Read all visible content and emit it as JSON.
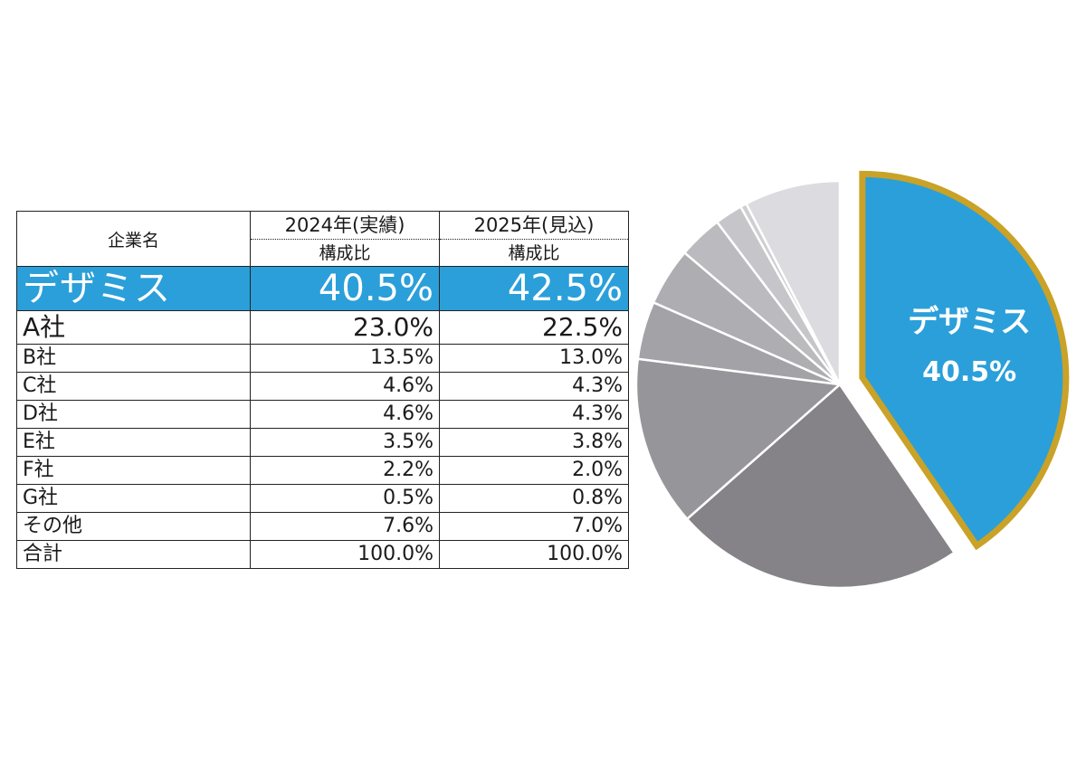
{
  "table": {
    "header": {
      "company": "企業名",
      "col1_year": "2024年(実績)",
      "col1_sub": "構成比",
      "col2_year": "2025年(見込)",
      "col2_sub": "構成比"
    },
    "rows": [
      {
        "name": "デザミス",
        "v2024": "40.5%",
        "v2025": "42.5%"
      },
      {
        "name": "A社",
        "v2024": "23.0%",
        "v2025": "22.5%"
      },
      {
        "name": "B社",
        "v2024": "13.5%",
        "v2025": "13.0%"
      },
      {
        "name": "C社",
        "v2024": "4.6%",
        "v2025": "4.3%"
      },
      {
        "name": "D社",
        "v2024": "4.6%",
        "v2025": "4.3%"
      },
      {
        "name": "E社",
        "v2024": "3.5%",
        "v2025": "3.8%"
      },
      {
        "name": "F社",
        "v2024": "2.2%",
        "v2025": "2.0%"
      },
      {
        "name": "G社",
        "v2024": "0.5%",
        "v2025": "0.8%"
      },
      {
        "name": "その他",
        "v2024": "7.6%",
        "v2025": "7.0%"
      }
    ],
    "total": {
      "name": "合計",
      "v2024": "100.0%",
      "v2025": "100.0%"
    }
  },
  "chart_data": {
    "type": "pie",
    "title": "",
    "slices": [
      {
        "label": "デザミス",
        "value": 40.5,
        "color": "#2b9fd9",
        "exploded": true,
        "outline": "#c9a227",
        "label_text": "デザミス",
        "value_text": "40.5%"
      },
      {
        "label": "A社",
        "value": 23.0,
        "color": "#858387"
      },
      {
        "label": "B社",
        "value": 13.5,
        "color": "#96959a"
      },
      {
        "label": "C社",
        "value": 4.6,
        "color": "#a3a2a6"
      },
      {
        "label": "D社",
        "value": 4.6,
        "color": "#aeadb1"
      },
      {
        "label": "E社",
        "value": 3.5,
        "color": "#bbbabe"
      },
      {
        "label": "F社",
        "value": 2.2,
        "color": "#c6c5c9"
      },
      {
        "label": "G社",
        "value": 0.5,
        "color": "#cfced2"
      },
      {
        "label": "その他",
        "value": 7.6,
        "color": "#dcdbe0"
      }
    ],
    "label_color": "#ffffff"
  }
}
